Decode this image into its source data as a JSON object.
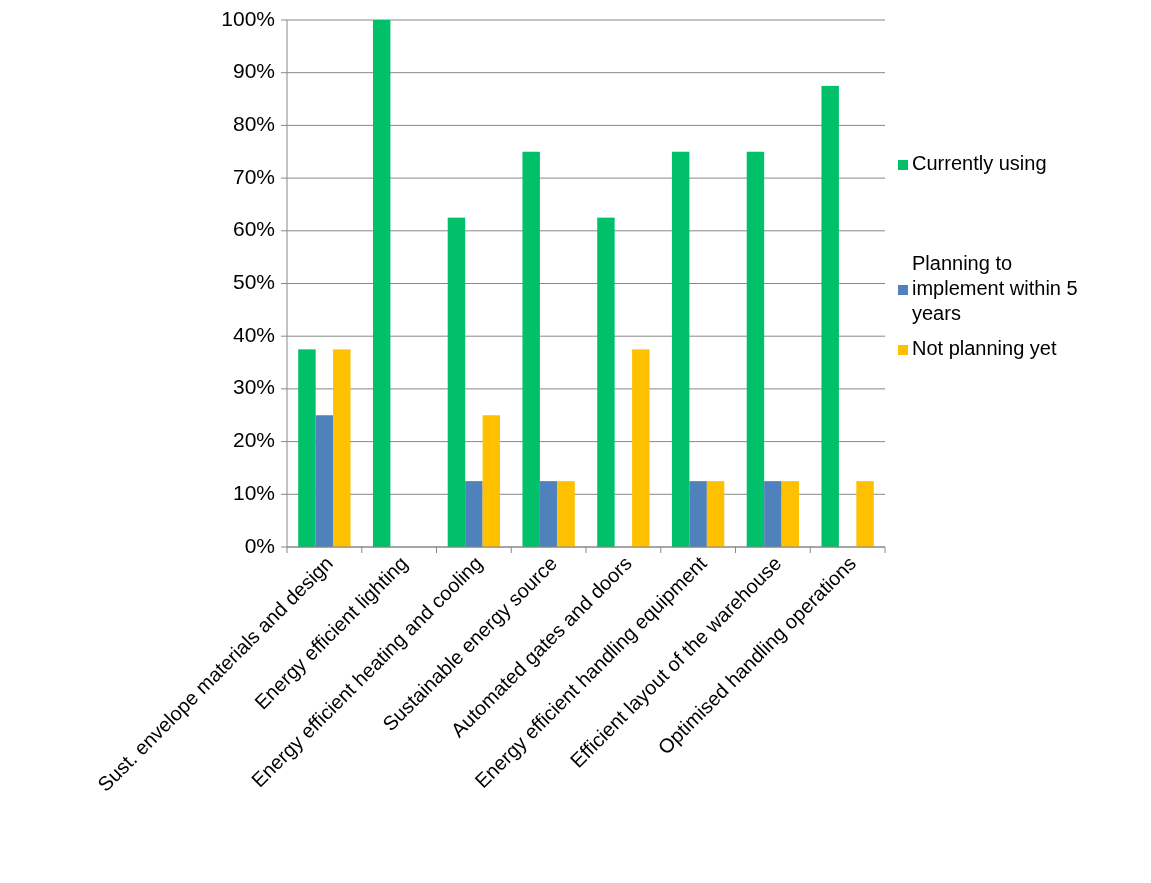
{
  "chart_data": {
    "type": "bar",
    "categories": [
      "Sust. envelope materials and design",
      "Energy efficient lighting",
      "Energy efficient heating and cooling",
      "Sustainable energy source",
      "Automated gates and doors",
      "Energy efficient handling equipment",
      "Efficient layout of the warehouse",
      "Optimised handling operations"
    ],
    "series": [
      {
        "name": "Currently using",
        "color": "#00c06a",
        "values": [
          37.5,
          100,
          62.5,
          75,
          62.5,
          75,
          75,
          87.5
        ]
      },
      {
        "name": "Planning to implement within 5 years",
        "color": "#4f81bd",
        "values": [
          25,
          0,
          12.5,
          12.5,
          0,
          12.5,
          12.5,
          0
        ]
      },
      {
        "name": "Not planning yet",
        "color": "#ffc000",
        "values": [
          37.5,
          0,
          25,
          12.5,
          37.5,
          12.5,
          12.5,
          12.5
        ]
      }
    ],
    "ylim": [
      0,
      100
    ],
    "yticks": [
      {
        "value": 0,
        "label": "0%"
      },
      {
        "value": 10,
        "label": "10%"
      },
      {
        "value": 20,
        "label": "20%"
      },
      {
        "value": 30,
        "label": "30%"
      },
      {
        "value": 40,
        "label": "40%"
      },
      {
        "value": 50,
        "label": "50%"
      },
      {
        "value": 60,
        "label": "60%"
      },
      {
        "value": 70,
        "label": "70%"
      },
      {
        "value": 80,
        "label": "80%"
      },
      {
        "value": 90,
        "label": "90%"
      },
      {
        "value": 100,
        "label": "100%"
      }
    ],
    "grid": "y",
    "legend": "right"
  }
}
